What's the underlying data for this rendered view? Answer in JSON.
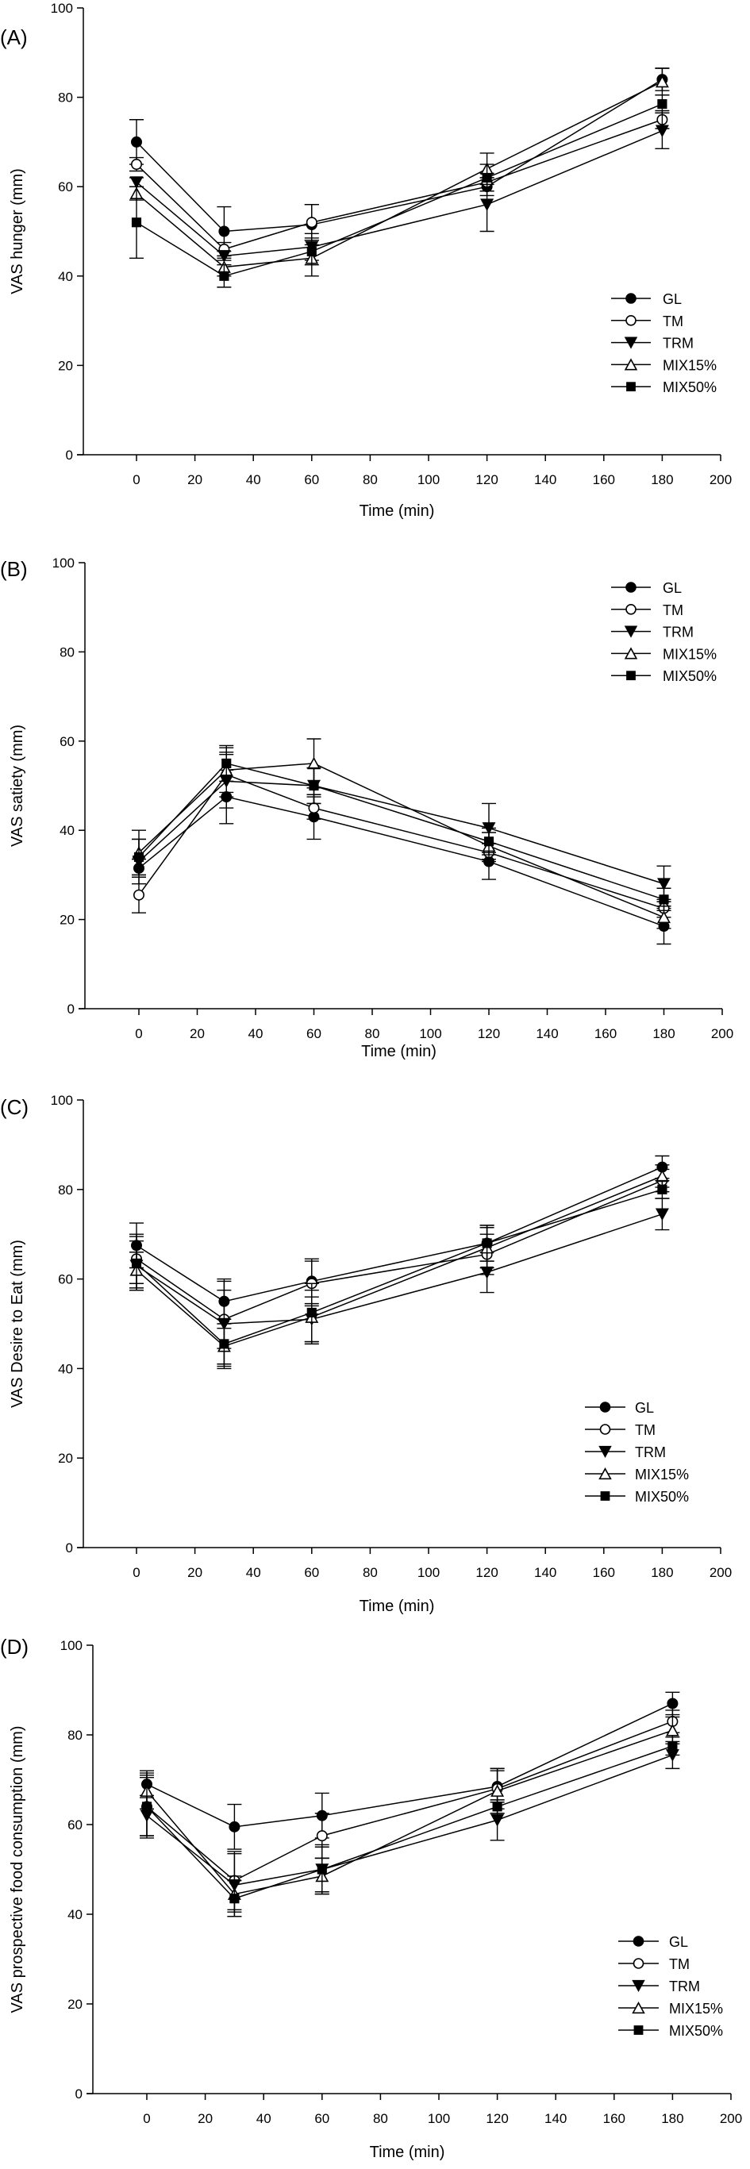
{
  "figure": {
    "series_styles": {
      "GL": {
        "marker": "circle",
        "fill": "#000000"
      },
      "TM": {
        "marker": "circle",
        "fill": "#ffffff"
      },
      "TRM": {
        "marker": "triangle-down",
        "fill": "#000000"
      },
      "MIX15%": {
        "marker": "triangle-up",
        "fill": "#ffffff"
      },
      "MIX50%": {
        "marker": "square",
        "fill": "#000000"
      }
    },
    "line_color": "#000000"
  },
  "chart_data": [
    {
      "type": "line",
      "panel_label": "(A)",
      "title": "",
      "xlabel": "Time (min)",
      "ylabel": "VAS  hunger (mm)",
      "x": [
        0,
        30,
        60,
        120,
        180
      ],
      "xlim": [
        -18,
        200
      ],
      "ylim": [
        0,
        100
      ],
      "xticks": [
        0,
        20,
        40,
        60,
        80,
        100,
        120,
        140,
        160,
        180,
        200
      ],
      "yticks": [
        0,
        20,
        40,
        60,
        80,
        100
      ],
      "grid": false,
      "legend_position": "center-right",
      "series": [
        {
          "name": "GL",
          "values": [
            70,
            50,
            51.5,
            60,
            84
          ],
          "errors": [
            5,
            5.5,
            4.5,
            2,
            2.5
          ]
        },
        {
          "name": "TM",
          "values": [
            65,
            46,
            52,
            61,
            75
          ],
          "errors": [
            1.5,
            1.5,
            4,
            2,
            2
          ]
        },
        {
          "name": "TRM",
          "values": [
            61,
            44.5,
            46.5,
            56,
            72.5
          ],
          "errors": [
            1,
            1,
            3,
            6,
            4
          ]
        },
        {
          "name": "MIX15%",
          "values": [
            58.5,
            42,
            44,
            64,
            83.5
          ],
          "errors": [
            1.5,
            2,
            4,
            3.5,
            3
          ]
        },
        {
          "name": "MIX50%",
          "values": [
            52,
            40,
            45.5,
            62,
            78.5
          ],
          "errors": [
            8,
            2.5,
            3,
            3,
            2
          ]
        }
      ]
    },
    {
      "type": "line",
      "panel_label": "(B)",
      "title": "",
      "xlabel": "Time (min)",
      "ylabel": "VAS  satiety (mm)",
      "x": [
        0,
        30,
        60,
        120,
        180
      ],
      "xlim": [
        -18,
        200
      ],
      "ylim": [
        0,
        100
      ],
      "xticks": [
        0,
        20,
        40,
        60,
        80,
        100,
        120,
        140,
        160,
        180,
        200
      ],
      "yticks": [
        0,
        20,
        40,
        60,
        80,
        100
      ],
      "grid": false,
      "legend_position": "top-right",
      "series": [
        {
          "name": "GL",
          "values": [
            31.5,
            47.5,
            43,
            33,
            18.5
          ],
          "errors": [
            2,
            6,
            5,
            4,
            4
          ]
        },
        {
          "name": "TM",
          "values": [
            25.5,
            52.5,
            45,
            35,
            22.5
          ],
          "errors": [
            4,
            5,
            2.5,
            2,
            2
          ]
        },
        {
          "name": "TRM",
          "values": [
            33,
            51,
            50,
            40.5,
            28
          ],
          "errors": [
            5,
            6,
            4,
            5.5,
            4
          ]
        },
        {
          "name": "MIX15%",
          "values": [
            35,
            53.5,
            55,
            36.5,
            20.5
          ],
          "errors": [
            5,
            5,
            5.5,
            3,
            2.5
          ]
        },
        {
          "name": "MIX50%",
          "values": [
            34,
            55,
            50,
            37.5,
            24.5
          ],
          "errors": [
            4,
            4,
            4,
            3,
            2.5
          ]
        }
      ]
    },
    {
      "type": "line",
      "panel_label": "(C)",
      "title": "",
      "xlabel": "Time (min)",
      "ylabel": "VAS Desire to Eat (mm)",
      "x": [
        0,
        30,
        60,
        120,
        180
      ],
      "xlim": [
        -18,
        200
      ],
      "ylim": [
        0,
        100
      ],
      "xticks": [
        0,
        20,
        40,
        60,
        80,
        100,
        120,
        140,
        160,
        180,
        200
      ],
      "yticks": [
        0,
        20,
        40,
        60,
        80,
        100
      ],
      "grid": false,
      "legend_position": "center-right",
      "series": [
        {
          "name": "GL",
          "values": [
            67.5,
            55,
            59.5,
            68,
            85
          ],
          "errors": [
            5,
            5,
            5,
            4,
            2.5
          ]
        },
        {
          "name": "TM",
          "values": [
            64.5,
            51,
            59,
            65.5,
            82
          ],
          "errors": [
            5.5,
            6.5,
            5,
            4.5,
            2.5
          ]
        },
        {
          "name": "TRM",
          "values": [
            63,
            50,
            51,
            61.5,
            74.5
          ],
          "errors": [
            5.5,
            9.5,
            5,
            4.5,
            3.5
          ]
        },
        {
          "name": "MIX15%",
          "values": [
            62,
            45,
            51.5,
            67,
            83
          ],
          "errors": [
            4,
            4,
            6,
            4.5,
            2.5
          ]
        },
        {
          "name": "MIX50%",
          "values": [
            63.5,
            45.5,
            52.5,
            68,
            80
          ],
          "errors": [
            6,
            5.5,
            6.5,
            4,
            2
          ]
        }
      ]
    },
    {
      "type": "line",
      "panel_label": "(D)",
      "title": "",
      "xlabel": "Time (min)",
      "ylabel": "VAS prospective food consumption (mm)",
      "x": [
        0,
        30,
        60,
        120,
        180
      ],
      "xlim": [
        -18,
        200
      ],
      "ylim": [
        0,
        100
      ],
      "xticks": [
        0,
        20,
        40,
        60,
        80,
        100,
        120,
        140,
        160,
        180,
        200
      ],
      "yticks": [
        0,
        20,
        40,
        60,
        80,
        100
      ],
      "grid": false,
      "legend_position": "bottom-right",
      "series": [
        {
          "name": "GL",
          "values": [
            69,
            59.5,
            62,
            68.5,
            87
          ],
          "errors": [
            3,
            5,
            5,
            3.5,
            2.5
          ]
        },
        {
          "name": "TM",
          "values": [
            64,
            47.5,
            57.5,
            68,
            83
          ],
          "errors": [
            7,
            6.5,
            5,
            4.5,
            2.5
          ]
        },
        {
          "name": "TRM",
          "values": [
            62,
            46.5,
            50,
            61,
            75.5
          ],
          "errors": [
            4.5,
            7,
            5.5,
            4.5,
            3
          ]
        },
        {
          "name": "MIX15%",
          "values": [
            67.5,
            44.5,
            48.5,
            67.5,
            81
          ],
          "errors": [
            4,
            4,
            4,
            5,
            3
          ]
        },
        {
          "name": "MIX50%",
          "values": [
            64,
            43.5,
            50,
            64,
            77.5
          ],
          "errors": [
            6.5,
            4,
            5,
            1.5,
            2
          ]
        }
      ]
    }
  ]
}
